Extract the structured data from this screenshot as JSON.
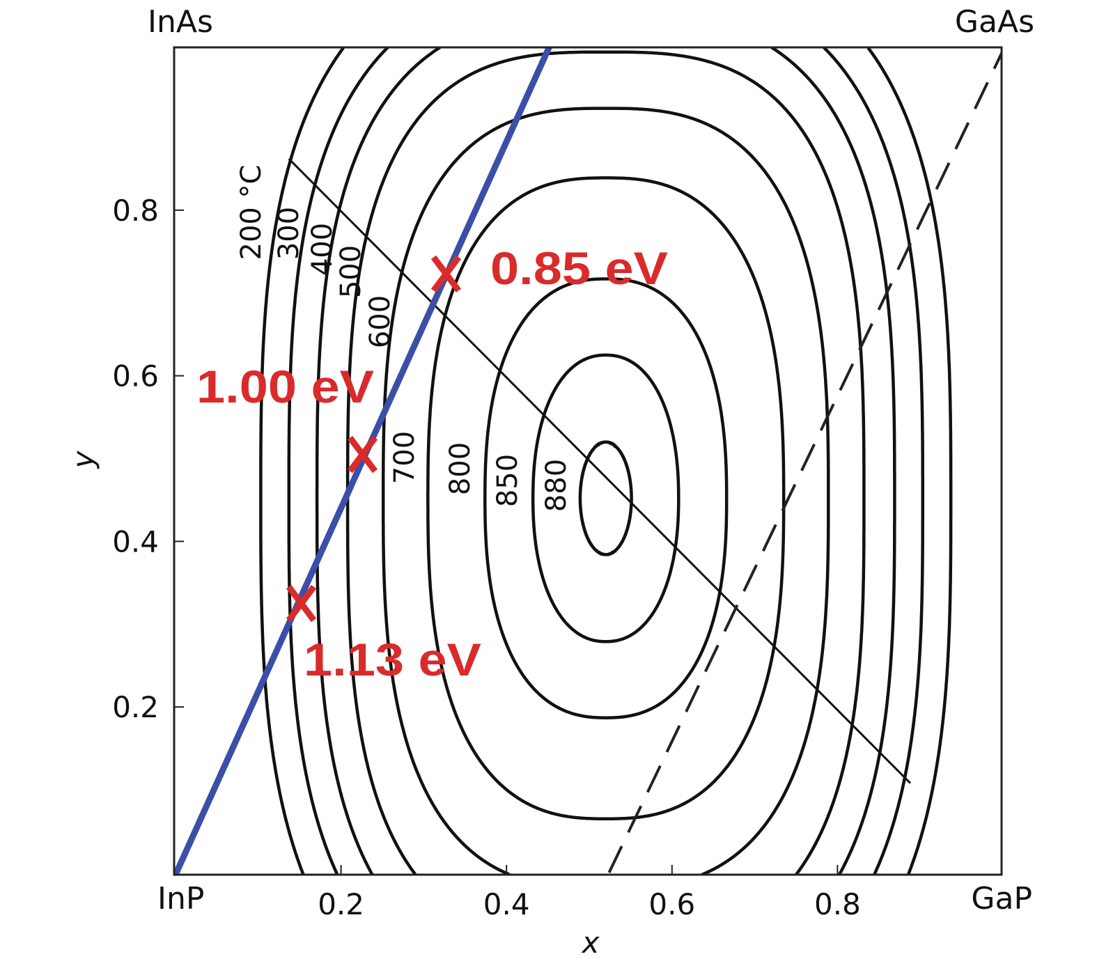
{
  "chart_data": {
    "type": "line",
    "title": "",
    "xlabel": "x",
    "ylabel": "y",
    "xlim": [
      0,
      1
    ],
    "ylim": [
      0,
      1
    ],
    "x_ticks": [
      "0.2",
      "0.4",
      "0.6",
      "0.8"
    ],
    "y_ticks": [
      "0.8",
      "0.6",
      "0.4",
      "0.2"
    ],
    "x_tick_values": [
      0.2,
      0.4,
      0.6,
      0.8
    ],
    "y_tick_values": [
      0.8,
      0.6,
      0.4,
      0.2
    ],
    "corners": {
      "top_left": "InAs",
      "top_right": "GaAs",
      "bottom_left": "InP",
      "bottom_right": "GaP"
    },
    "grid": false,
    "contour_center": [
      0.52,
      0.452
    ],
    "contours": [
      {
        "label": "200 °C",
        "value": 200,
        "rx": 0.417,
        "ry": 0.66,
        "n": 3.0
      },
      {
        "label": "300",
        "value": 300,
        "rx": 0.383,
        "ry": 0.621,
        "n": 3.0
      },
      {
        "label": "400",
        "value": 400,
        "rx": 0.349,
        "ry": 0.584,
        "n": 3.0
      },
      {
        "label": "500",
        "value": 500,
        "rx": 0.312,
        "ry": 0.539,
        "n": 3.0
      },
      {
        "label": "600",
        "value": 600,
        "rx": 0.269,
        "ry": 0.471,
        "n": 2.8
      },
      {
        "label": "700",
        "value": 700,
        "rx": 0.215,
        "ry": 0.387,
        "n": 2.6
      },
      {
        "label": "800",
        "value": 800,
        "rx": 0.146,
        "ry": 0.265,
        "n": 2.4
      },
      {
        "label": "850",
        "value": 850,
        "rx": 0.088,
        "ry": 0.173,
        "n": 2.2
      },
      {
        "label": "880",
        "value": 880,
        "rx": 0.031,
        "ry": 0.068,
        "n": 2.0
      }
    ],
    "tie_line": {
      "x": [
        0.137,
        0.888
      ],
      "y": [
        0.862,
        0.108
      ]
    },
    "dashed_line": {
      "x": [
        0.524,
        1.0
      ],
      "y": [
        0.0,
        0.993
      ]
    },
    "lattice_matched_line": {
      "x": [
        0.0,
        0.453
      ],
      "y": [
        0.0,
        1.0
      ],
      "color": "#3a4fa8"
    },
    "points": [
      {
        "x": 0.327,
        "y": 0.723,
        "marker": "X",
        "label": "0.85 eV"
      },
      {
        "x": 0.226,
        "y": 0.505,
        "marker": "X",
        "label": "1.00 eV"
      },
      {
        "x": 0.152,
        "y": 0.325,
        "marker": "X",
        "label": "1.13 eV"
      }
    ],
    "marker_color": "#d92b2b"
  }
}
